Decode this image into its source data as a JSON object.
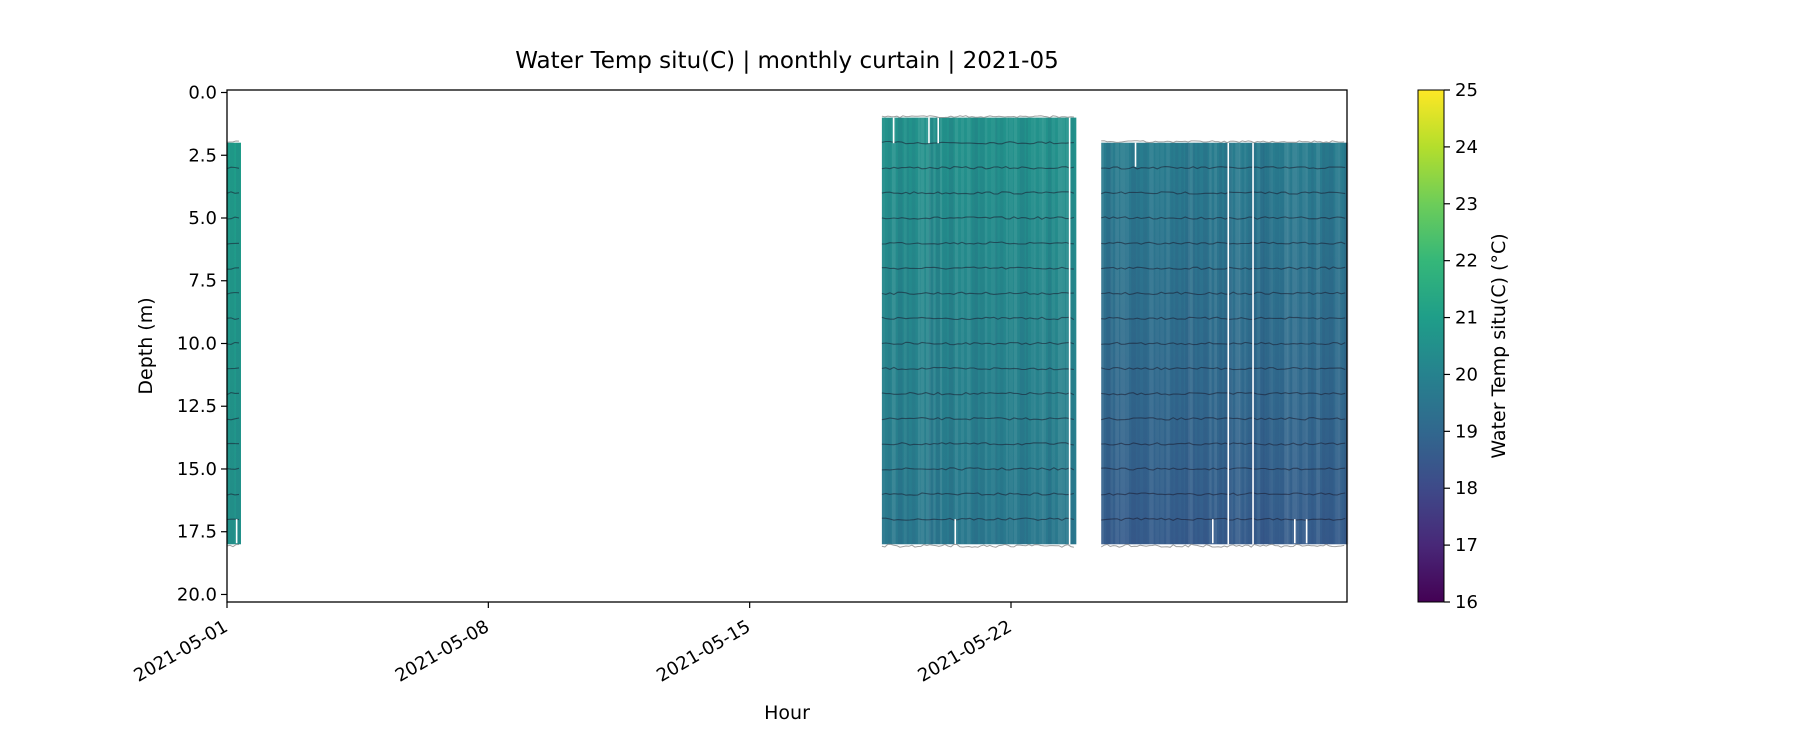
{
  "chart_data": {
    "type": "heatmap",
    "subtype": "depth-time curtain",
    "title": "Water Temp situ(C) | monthly curtain | 2021-05",
    "xlabel": "Hour",
    "ylabel": "Depth (m)",
    "colorbar_label": "Water Temp situ(C) (°C)",
    "colormap": "viridis",
    "color_range": [
      16,
      25
    ],
    "x_range": [
      "2021-05-01",
      "2021-05-31"
    ],
    "x_ticks": [
      "2021-05-01",
      "2021-05-08",
      "2021-05-15",
      "2021-05-22"
    ],
    "y_range": [
      20.3,
      -0.1
    ],
    "y_inverted": true,
    "y_ticks": [
      0.0,
      2.5,
      5.0,
      7.5,
      10.0,
      12.5,
      15.0,
      17.5,
      20.0
    ],
    "y_tick_labels": [
      "0.0",
      "2.5",
      "5.0",
      "7.5",
      "10.0",
      "12.5",
      "15.0",
      "17.5",
      "20.0"
    ],
    "colorbar_ticks": [
      16,
      17,
      18,
      19,
      20,
      21,
      22,
      23,
      24,
      25
    ],
    "sensor_depths_m": [
      2,
      3,
      4,
      5,
      6,
      7,
      8,
      9,
      10,
      11,
      12,
      13,
      14,
      15,
      16,
      17,
      18
    ],
    "segments": [
      {
        "start": "2021-05-01T00:00",
        "end": "2021-05-01T09:00",
        "depth_top": 2.0,
        "depth_bottom": 18.0,
        "temp_top": 21.0,
        "temp_bottom": 20.6
      },
      {
        "start": "2021-05-18T13:00",
        "end": "2021-05-23T18:00",
        "depth_top": 1.0,
        "depth_bottom": 18.0,
        "temp_top": 20.6,
        "temp_bottom": 19.6
      },
      {
        "start": "2021-05-24T10:00",
        "end": "2021-05-31T00:00",
        "depth_top": 2.0,
        "depth_bottom": 18.0,
        "temp_top": 19.8,
        "temp_bottom": 18.6
      }
    ]
  }
}
